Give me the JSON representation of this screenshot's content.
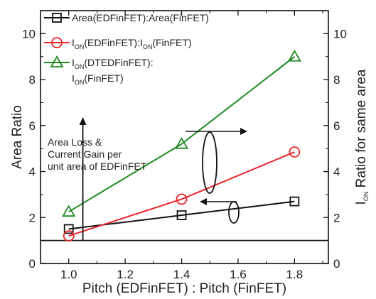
{
  "chart_data": {
    "type": "line",
    "xlabel": "Pitch (EDFinFET) : Pitch (FinFET)",
    "ylabel": "Area Ratio",
    "y2label": {
      "pre": "I",
      "sub": "ON",
      "post": " Ratio for same area"
    },
    "xlim": [
      0.9,
      1.92
    ],
    "ylim": [
      0,
      11
    ],
    "y2lim": [
      0,
      11
    ],
    "x_ticks": [
      1.0,
      1.2,
      1.4,
      1.6,
      1.8
    ],
    "x_tick_labels": [
      "1.0",
      "1.2",
      "1.4",
      "1.6",
      "1.8"
    ],
    "y_ticks": [
      0,
      2,
      4,
      6,
      8,
      10
    ],
    "y_tick_labels": [
      "0",
      "2",
      "4",
      "6",
      "8",
      "10"
    ],
    "y2_ticks": [
      0,
      2,
      4,
      6,
      8,
      10
    ],
    "y2_tick_labels": [
      "0",
      "2",
      "4",
      "6",
      "8",
      "10"
    ],
    "series": [
      {
        "key": "area",
        "color": "#111111",
        "marker": "square",
        "axis": "left",
        "x": [
          1.0,
          1.4,
          1.8
        ],
        "y": [
          1.5,
          2.1,
          2.7
        ],
        "legend": [
          {
            "t": "Area(EDFinFET):Area(FinFET)"
          }
        ]
      },
      {
        "key": "ion",
        "color": "#e8262a",
        "marker": "circle",
        "axis": "right",
        "x": [
          1.0,
          1.4,
          1.8
        ],
        "y": [
          1.2,
          2.8,
          4.85
        ],
        "legend": [
          {
            "t": "I"
          },
          {
            "t": "ON",
            "sub": true
          },
          {
            "t": "(EDFinFET):I"
          },
          {
            "t": "ON",
            "sub": true
          },
          {
            "t": "(FinFET)"
          }
        ]
      },
      {
        "key": "dted",
        "color": "#1e8a22",
        "marker": "triangle",
        "axis": "right",
        "x": [
          1.0,
          1.4,
          1.8
        ],
        "y": [
          2.25,
          5.2,
          9.0
        ],
        "legend": [
          {
            "t": "I"
          },
          {
            "t": "ON",
            "sub": true
          },
          {
            "t": "(DTEDFinFET):"
          }
        ],
        "legend_line2": [
          {
            "t": "I"
          },
          {
            "t": "ON",
            "sub": true
          },
          {
            "t": "(FinFET)"
          }
        ]
      }
    ],
    "reference_line_y": 1,
    "annotation": [
      "Area Loss &",
      "Current Gain per",
      "unit area of EDFinFET"
    ],
    "annotation_arrow_x": 1.05,
    "grid": false,
    "legend_position": "top-left"
  }
}
